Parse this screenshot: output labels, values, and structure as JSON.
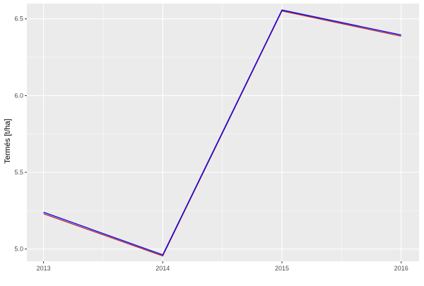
{
  "chart_data": {
    "type": "line",
    "title": "",
    "xlabel": "",
    "ylabel": "Termés [t/ha]",
    "x": [
      2013,
      2014,
      2015,
      2016
    ],
    "x_tick_labels": [
      "2013",
      "2014",
      "2015",
      "2016"
    ],
    "y_tick_labels": [
      "5.0",
      "5.5",
      "6.0",
      "6.5"
    ],
    "y_ticks": [
      5.0,
      5.5,
      6.0,
      6.5
    ],
    "xlim": [
      2012.86,
      2016.15
    ],
    "ylim": [
      4.92,
      6.6
    ],
    "grid": true,
    "series": [
      {
        "color": "#b22222",
        "values": [
          5.23,
          4.955,
          6.552,
          6.387
        ]
      },
      {
        "color": "#0000ff",
        "values": [
          5.24,
          4.962,
          6.558,
          6.395
        ]
      }
    ]
  }
}
